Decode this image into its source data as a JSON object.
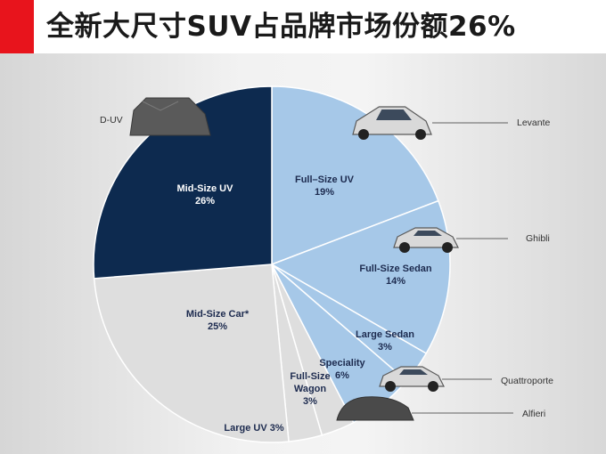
{
  "title": "全新大尺寸SUV占品牌市场份额26%",
  "chart_data": {
    "type": "pie",
    "slices": [
      {
        "name": "Full–Size UV",
        "value": 19,
        "pct_label": "19%",
        "color": "#a6c8e8",
        "text_color": "#1d2b4f"
      },
      {
        "name": "Full-Size Sedan",
        "value": 14,
        "pct_label": "14%",
        "color": "#a6c8e8",
        "text_color": "#1d2b4f"
      },
      {
        "name": "Large Sedan",
        "value": 3,
        "pct_label": "3%",
        "color": "#a6c8e8",
        "text_color": "#1d2b4f"
      },
      {
        "name": "Speciality",
        "value": 6,
        "pct_label": "6%",
        "color": "#a6c8e8",
        "text_color": "#1d2b4f"
      },
      {
        "name": "Full-Size Wagon",
        "value": 3,
        "pct_label": "3%",
        "color": "#dedede",
        "text_color": "#1d2b4f"
      },
      {
        "name": "Large UV",
        "value": 3,
        "pct_label": "3%",
        "color": "#dedede",
        "text_color": "#1d2b4f"
      },
      {
        "name": "Mid-Size Car*",
        "value": 25,
        "pct_label": "25%",
        "color": "#dedede",
        "text_color": "#1d2b4f"
      },
      {
        "name": "Mid-Size UV",
        "value": 26,
        "pct_label": "26%",
        "color": "#0d2a4f",
        "text_color": "#ffffff"
      }
    ],
    "start_angle_deg": 0,
    "direction": "clockwise"
  },
  "callouts": [
    {
      "name": "D-UV"
    },
    {
      "name": "Levante"
    },
    {
      "name": "Ghibli"
    },
    {
      "name": "Quattroporte"
    },
    {
      "name": "Alfieri"
    }
  ],
  "colors": {
    "accent": "#e8141c",
    "navy": "#0d2a4f",
    "light_blue": "#a6c8e8",
    "grey": "#dedede"
  }
}
